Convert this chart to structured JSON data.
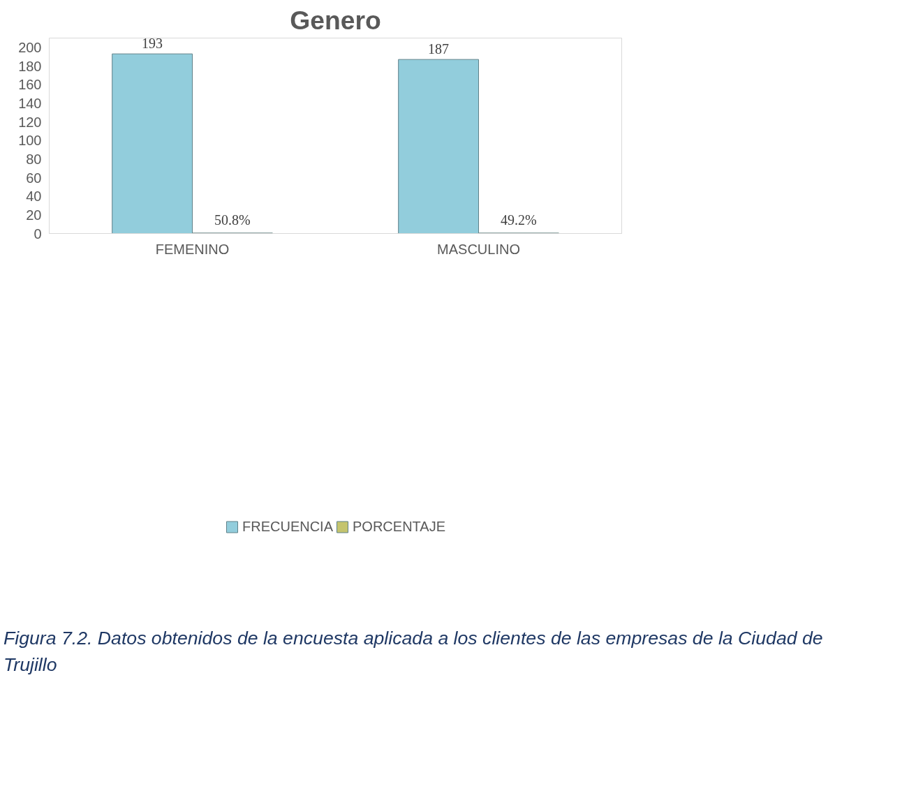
{
  "chart_data": {
    "type": "bar",
    "title": "Genero",
    "categories": [
      "FEMENINO",
      "MASCULINO"
    ],
    "series": [
      {
        "name": "FRECUENCIA",
        "color": "#92cddc",
        "values": [
          193,
          187
        ],
        "value_labels": [
          "193",
          "187"
        ]
      },
      {
        "name": "PORCENTAJE",
        "color": "#c4c46e",
        "values": [
          0.508,
          0.492
        ],
        "value_labels": [
          "50.8%",
          "49.2%"
        ]
      }
    ],
    "ylim": [
      0,
      210
    ],
    "yticks": [
      0,
      20,
      40,
      60,
      80,
      100,
      120,
      140,
      160,
      180,
      200
    ],
    "grid": false,
    "legend": "bottom",
    "annotations": [
      "Figura 7.2. Datos obtenidos de la encuesta aplicada a los clientes de las empresas de la Ciudad de Trujillo"
    ]
  }
}
